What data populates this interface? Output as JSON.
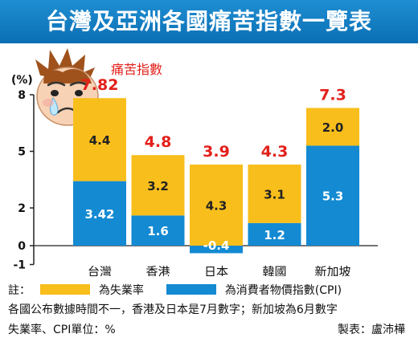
{
  "header": {
    "title": "台灣及亞洲各國痛苦指數一覽表"
  },
  "chart_data": {
    "type": "bar",
    "stacked": true,
    "unit_label": "(%)",
    "categories": [
      "台灣",
      "香港",
      "日本",
      "韓國",
      "新加坡"
    ],
    "series": [
      {
        "name": "為消費者物價指數(CPI)",
        "color": "#138ad2",
        "values": [
          3.42,
          1.6,
          -0.4,
          1.2,
          5.3
        ]
      },
      {
        "name": "為失業率",
        "color": "#f8be1c",
        "values": [
          4.4,
          3.2,
          4.3,
          3.1,
          2.0
        ]
      }
    ],
    "totals": [
      7.82,
      4.8,
      3.9,
      4.3,
      7.3
    ],
    "total_labels": [
      "7.82",
      "4.8",
      "3.9",
      "4.3",
      "7.3"
    ],
    "cpi_labels": [
      "3.42",
      "1.6",
      "-0.4",
      "1.2",
      "5.3"
    ],
    "unemployment_labels": [
      "4.4",
      "3.2",
      "4.3",
      "3.1",
      "2.0"
    ],
    "total_color": "#e3201b",
    "y_ticks": [
      -1,
      0,
      2,
      5,
      8
    ],
    "ylim": [
      -1,
      8
    ],
    "grid": false,
    "annotation": "痛苦指數"
  },
  "legend": {
    "prefix": "註：",
    "unemployment": "為失業率",
    "cpi": "為消費者物價指數(CPI)"
  },
  "notes": {
    "line1": "各國公布數據時間不一，香港及日本是7月數字；新加坡為6月數字",
    "line2": "失業率、CPI單位：%",
    "credit": "製表：盧沛樺"
  }
}
